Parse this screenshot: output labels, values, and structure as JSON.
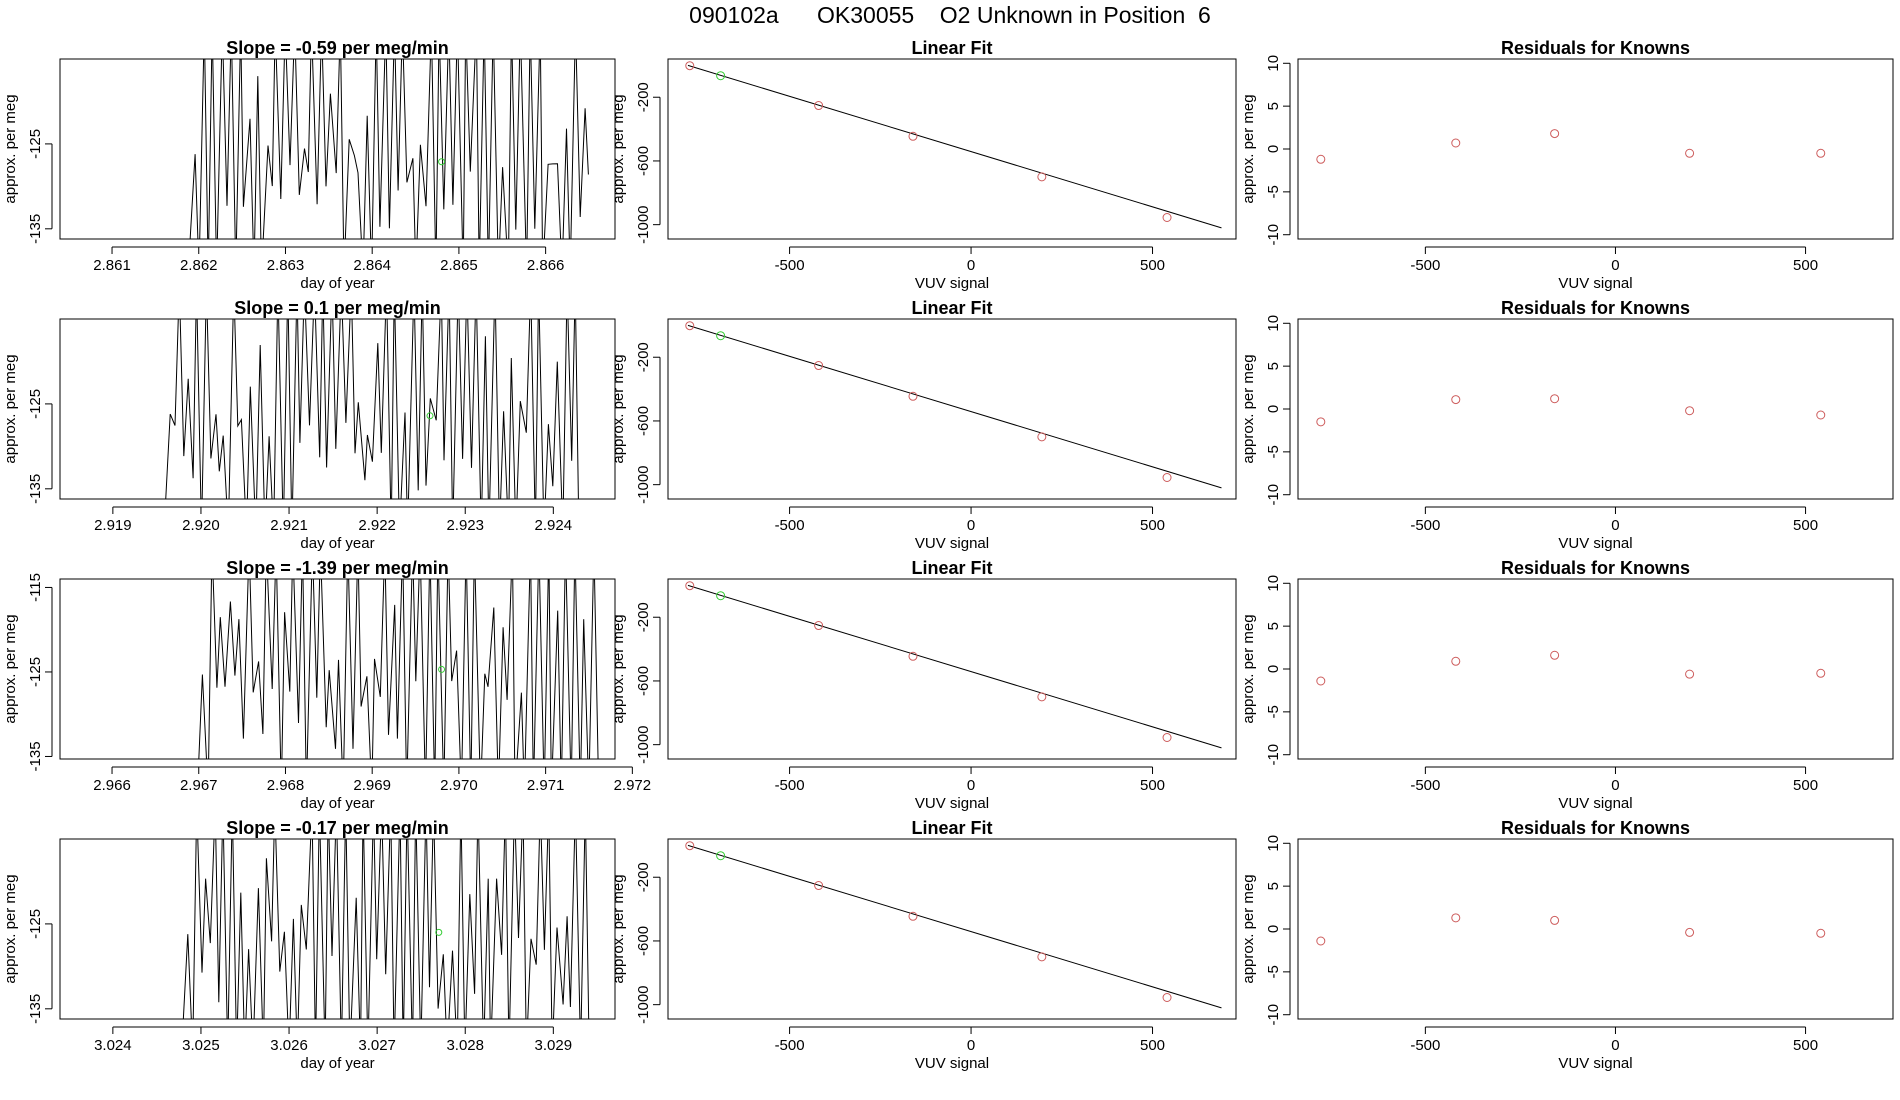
{
  "page": {
    "title": "090102a      OK30055    O2 Unknown in Position  6"
  },
  "colors": {
    "known": "#cd5c5c",
    "unknown": "#33cc33",
    "line": "#000000"
  },
  "chart_data": [
    {
      "type": "line",
      "panel": "trace",
      "row": 1,
      "title": "Slope =  -0.59  per meg/min",
      "xlabel": "day of year",
      "ylabel": "approx. per meg",
      "xlim": [
        2.8604,
        2.8668
      ],
      "ylim": [
        -136.2,
        -115.0
      ],
      "xticks": [
        2.861,
        2.862,
        2.863,
        2.864,
        2.865,
        2.866
      ],
      "xtick_labels": [
        "2.861",
        "2.862",
        "2.863",
        "2.864",
        "2.865",
        "2.866"
      ],
      "yticks": [
        -125,
        -135
      ],
      "ytick_labels": [
        "-125",
        "-135"
      ],
      "trace_start": 2.8619,
      "trace_end": 2.8665,
      "cycles": 44,
      "seed": 3,
      "unknown_point": {
        "x": 2.8648,
        "y": -127.1
      }
    },
    {
      "type": "line",
      "panel": "trace",
      "row": 2,
      "title": "Slope =  0.1  per meg/min",
      "xlabel": "day of year",
      "ylabel": "approx. per meg",
      "xlim": [
        2.9184,
        2.9247
      ],
      "ylim": [
        -136.2,
        -115.0
      ],
      "xticks": [
        2.919,
        2.92,
        2.921,
        2.922,
        2.923,
        2.924
      ],
      "xtick_labels": [
        "2.919",
        "2.920",
        "2.921",
        "2.922",
        "2.923",
        "2.924"
      ],
      "yticks": [
        -125,
        -135
      ],
      "ytick_labels": [
        "-125",
        "-135"
      ],
      "trace_start": 2.9196,
      "trace_end": 2.9243,
      "cycles": 46,
      "seed": 11,
      "unknown_point": {
        "x": 2.9226,
        "y": -126.4
      }
    },
    {
      "type": "line",
      "panel": "trace",
      "row": 3,
      "title": "Slope =  -1.39  per meg/min",
      "xlabel": "day of year",
      "ylabel": "approx. per meg",
      "xlim": [
        2.9654,
        2.9718
      ],
      "ylim": [
        -135.3,
        -114.0
      ],
      "xticks": [
        2.966,
        2.967,
        2.968,
        2.969,
        2.97,
        2.971,
        2.972
      ],
      "xtick_labels": [
        "2.966",
        "2.967",
        "2.968",
        "2.969",
        "2.970",
        "2.971",
        "2.972"
      ],
      "yticks": [
        -115,
        -125,
        -135
      ],
      "ytick_labels": [
        "-115",
        "-125",
        "-135"
      ],
      "trace_start": 2.967,
      "trace_end": 2.9716,
      "cycles": 44,
      "seed": 23,
      "unknown_point": {
        "x": 2.9698,
        "y": -124.7
      }
    },
    {
      "type": "line",
      "panel": "trace",
      "row": 4,
      "title": "Slope =  -0.17  per meg/min",
      "xlabel": "day of year",
      "ylabel": "approx. per meg",
      "xlim": [
        3.0234,
        3.0297
      ],
      "ylim": [
        -136.2,
        -115.0
      ],
      "xticks": [
        3.024,
        3.025,
        3.026,
        3.027,
        3.028,
        3.029
      ],
      "xtick_labels": [
        "3.024",
        "3.025",
        "3.026",
        "3.027",
        "3.028",
        "3.029"
      ],
      "yticks": [
        -125,
        -135
      ],
      "ytick_labels": [
        "-125",
        "-135"
      ],
      "trace_start": 3.0248,
      "trace_end": 3.0294,
      "cycles": 46,
      "seed": 37,
      "unknown_point": {
        "x": 3.0277,
        "y": -126.0
      }
    },
    {
      "type": "scatter",
      "panel": "fit",
      "row": 1,
      "title": "Linear Fit",
      "xlabel": "VUV signal",
      "ylabel": "approx. per meg",
      "xlim": [
        -835,
        730
      ],
      "ylim": [
        -1090,
        40
      ],
      "xticks": [
        -500,
        0,
        500
      ],
      "xtick_labels": [
        "-500",
        "0",
        "500"
      ],
      "yticks": [
        -200,
        -600,
        -1000
      ],
      "ytick_labels": [
        "-200",
        "-600",
        "-1000"
      ],
      "line": {
        "x0": -780,
        "y0": 0,
        "x1": 690,
        "y1": -1020
      },
      "knowns": [
        {
          "x": -775,
          "y": -2
        },
        {
          "x": -420,
          "y": -252
        },
        {
          "x": -160,
          "y": -445
        },
        {
          "x": 195,
          "y": -700
        },
        {
          "x": 540,
          "y": -955
        }
      ],
      "unknowns": [
        {
          "x": -690,
          "y": -65
        }
      ]
    },
    {
      "type": "scatter",
      "panel": "fit",
      "row": 2,
      "title": "Linear Fit",
      "xlabel": "VUV signal",
      "ylabel": "approx. per meg",
      "xlim": [
        -835,
        730
      ],
      "ylim": [
        -1090,
        40
      ],
      "xticks": [
        -500,
        0,
        500
      ],
      "xtick_labels": [
        "-500",
        "0",
        "500"
      ],
      "yticks": [
        -200,
        -600,
        -1000
      ],
      "ytick_labels": [
        "-200",
        "-600",
        "-1000"
      ],
      "line": {
        "x0": -780,
        "y0": 0,
        "x1": 690,
        "y1": -1020
      },
      "knowns": [
        {
          "x": -775,
          "y": -2
        },
        {
          "x": -420,
          "y": -252
        },
        {
          "x": -160,
          "y": -445
        },
        {
          "x": 195,
          "y": -700
        },
        {
          "x": 540,
          "y": -955
        }
      ],
      "unknowns": [
        {
          "x": -690,
          "y": -65
        }
      ]
    },
    {
      "type": "scatter",
      "panel": "fit",
      "row": 3,
      "title": "Linear Fit",
      "xlabel": "VUV signal",
      "ylabel": "approx. per meg",
      "xlim": [
        -835,
        730
      ],
      "ylim": [
        -1090,
        40
      ],
      "xticks": [
        -500,
        0,
        500
      ],
      "xtick_labels": [
        "-500",
        "0",
        "500"
      ],
      "yticks": [
        -200,
        -600,
        -1000
      ],
      "ytick_labels": [
        "-200",
        "-600",
        "-1000"
      ],
      "line": {
        "x0": -780,
        "y0": 0,
        "x1": 690,
        "y1": -1020
      },
      "knowns": [
        {
          "x": -775,
          "y": -2
        },
        {
          "x": -420,
          "y": -252
        },
        {
          "x": -160,
          "y": -445
        },
        {
          "x": 195,
          "y": -700
        },
        {
          "x": 540,
          "y": -955
        }
      ],
      "unknowns": [
        {
          "x": -690,
          "y": -65
        }
      ]
    },
    {
      "type": "scatter",
      "panel": "fit",
      "row": 4,
      "title": "Linear Fit",
      "xlabel": "VUV signal",
      "ylabel": "approx. per meg",
      "xlim": [
        -835,
        730
      ],
      "ylim": [
        -1090,
        40
      ],
      "xticks": [
        -500,
        0,
        500
      ],
      "xtick_labels": [
        "-500",
        "0",
        "500"
      ],
      "yticks": [
        -200,
        -600,
        -1000
      ],
      "ytick_labels": [
        "-200",
        "-600",
        "-1000"
      ],
      "line": {
        "x0": -780,
        "y0": 0,
        "x1": 690,
        "y1": -1020
      },
      "knowns": [
        {
          "x": -775,
          "y": -2
        },
        {
          "x": -420,
          "y": -252
        },
        {
          "x": -160,
          "y": -445
        },
        {
          "x": 195,
          "y": -700
        },
        {
          "x": 540,
          "y": -955
        }
      ],
      "unknowns": [
        {
          "x": -690,
          "y": -65
        }
      ]
    },
    {
      "type": "scatter",
      "panel": "residuals",
      "row": 1,
      "title": "Residuals for Knowns",
      "xlabel": "VUV signal",
      "ylabel": "approx. per meg",
      "xlim": [
        -835,
        730
      ],
      "ylim": [
        -10.5,
        10.5
      ],
      "xticks": [
        -500,
        0,
        500
      ],
      "xtick_labels": [
        "-500",
        "0",
        "500"
      ],
      "yticks": [
        10,
        5,
        0,
        -5,
        -10
      ],
      "ytick_labels": [
        "10",
        "5",
        "0",
        "-5",
        "-10"
      ],
      "points": [
        {
          "x": -775,
          "y": -1.2
        },
        {
          "x": -420,
          "y": 0.7
        },
        {
          "x": -160,
          "y": 1.8
        },
        {
          "x": 195,
          "y": -0.5
        },
        {
          "x": 540,
          "y": -0.5
        }
      ]
    },
    {
      "type": "scatter",
      "panel": "residuals",
      "row": 2,
      "title": "Residuals for Knowns",
      "xlabel": "VUV signal",
      "ylabel": "approx. per meg",
      "xlim": [
        -835,
        730
      ],
      "ylim": [
        -10.5,
        10.5
      ],
      "xticks": [
        -500,
        0,
        500
      ],
      "xtick_labels": [
        "-500",
        "0",
        "500"
      ],
      "yticks": [
        10,
        5,
        0,
        -5,
        -10
      ],
      "ytick_labels": [
        "10",
        "5",
        "0",
        "-5",
        "-10"
      ],
      "points": [
        {
          "x": -775,
          "y": -1.5
        },
        {
          "x": -420,
          "y": 1.1
        },
        {
          "x": -160,
          "y": 1.2
        },
        {
          "x": 195,
          "y": -0.2
        },
        {
          "x": 540,
          "y": -0.7
        }
      ]
    },
    {
      "type": "scatter",
      "panel": "residuals",
      "row": 3,
      "title": "Residuals for Knowns",
      "xlabel": "VUV signal",
      "ylabel": "approx. per meg",
      "xlim": [
        -835,
        730
      ],
      "ylim": [
        -10.5,
        10.5
      ],
      "xticks": [
        -500,
        0,
        500
      ],
      "xtick_labels": [
        "-500",
        "0",
        "500"
      ],
      "yticks": [
        10,
        5,
        0,
        -5,
        -10
      ],
      "ytick_labels": [
        "10",
        "5",
        "0",
        "-5",
        "-10"
      ],
      "points": [
        {
          "x": -775,
          "y": -1.4
        },
        {
          "x": -420,
          "y": 0.9
        },
        {
          "x": -160,
          "y": 1.6
        },
        {
          "x": 195,
          "y": -0.6
        },
        {
          "x": 540,
          "y": -0.5
        }
      ]
    },
    {
      "type": "scatter",
      "panel": "residuals",
      "row": 4,
      "title": "Residuals for Knowns",
      "xlabel": "VUV signal",
      "ylabel": "approx. per meg",
      "xlim": [
        -835,
        730
      ],
      "ylim": [
        -10.5,
        10.5
      ],
      "xticks": [
        -500,
        0,
        500
      ],
      "xtick_labels": [
        "-500",
        "0",
        "500"
      ],
      "yticks": [
        10,
        5,
        0,
        -5,
        -10
      ],
      "ytick_labels": [
        "10",
        "5",
        "0",
        "-5",
        "-10"
      ],
      "points": [
        {
          "x": -775,
          "y": -1.4
        },
        {
          "x": -420,
          "y": 1.3
        },
        {
          "x": -160,
          "y": 1.0
        },
        {
          "x": 195,
          "y": -0.4
        },
        {
          "x": 540,
          "y": -0.5
        }
      ]
    }
  ]
}
